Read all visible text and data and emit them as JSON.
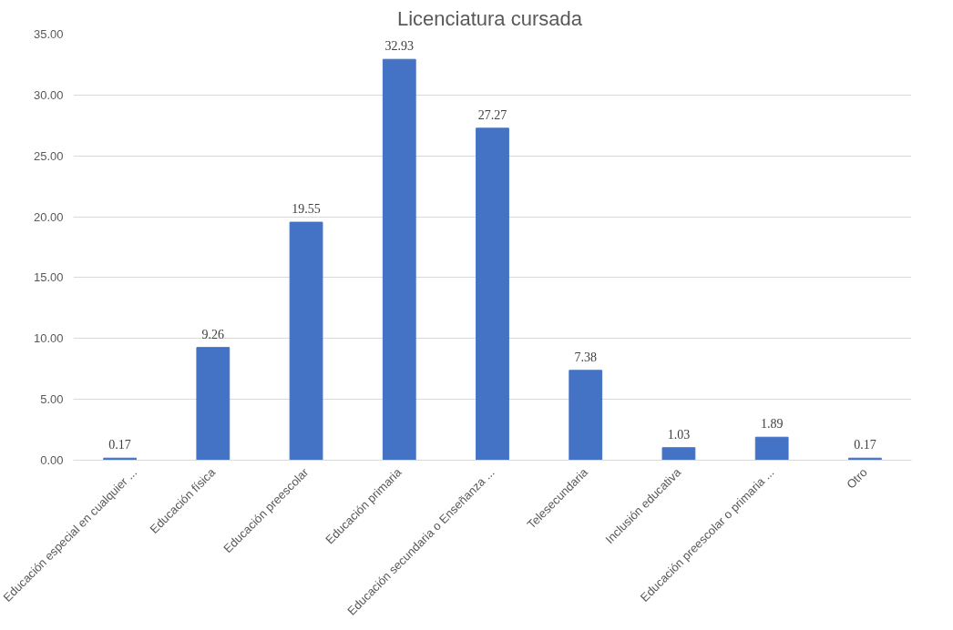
{
  "chart_data": {
    "type": "bar",
    "title": "Licenciatura  cursada",
    "categories": [
      "Educación especial en cualquier ...",
      "Educación física",
      "Educación preescolar",
      "Educación primaria",
      "Educación secundaria o Enseñanza ...",
      "Telesecundaria",
      "Inclusión educativa",
      "Educación preescolar o primaria ...",
      "Otro"
    ],
    "values": [
      0.17,
      9.26,
      19.55,
      32.93,
      27.27,
      7.38,
      1.03,
      1.89,
      0.17
    ],
    "color": "#4472c4",
    "ylim": [
      0,
      35
    ],
    "yticks": [
      {
        "value": 0,
        "label": "0.00"
      },
      {
        "value": 5,
        "label": "5.00"
      },
      {
        "value": 10,
        "label": "10.00"
      },
      {
        "value": 15,
        "label": "15.00"
      },
      {
        "value": 20,
        "label": "20.00"
      },
      {
        "value": 25,
        "label": "25.00"
      },
      {
        "value": 30,
        "label": "30.00"
      },
      {
        "value": 35,
        "label": "35.00"
      }
    ],
    "grid": "y",
    "data_labels": true
  }
}
